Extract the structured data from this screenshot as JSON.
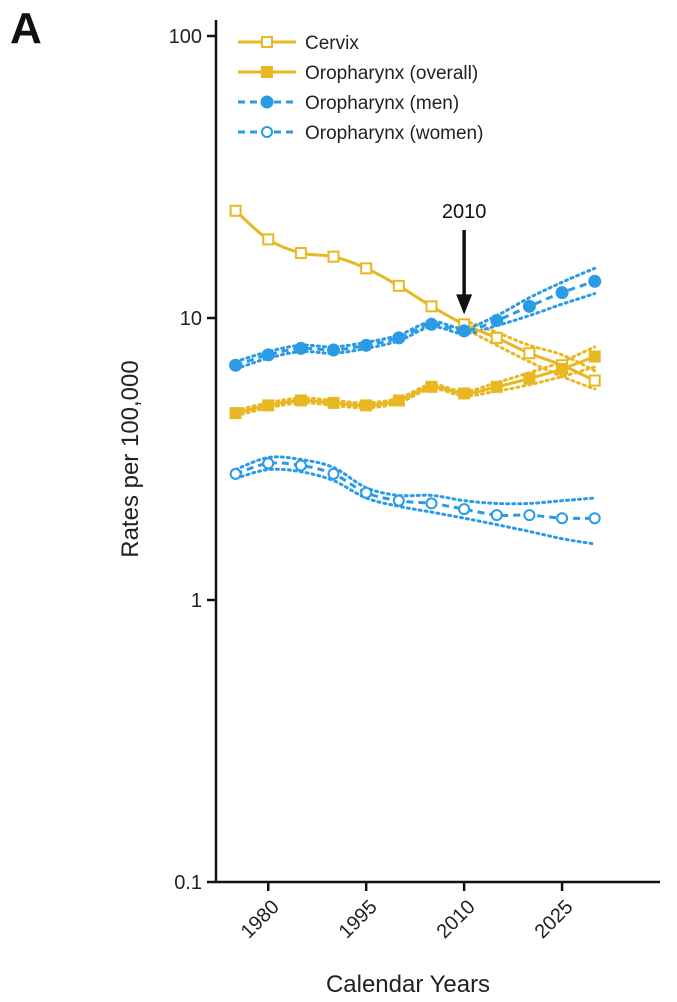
{
  "panel_label": "A",
  "colors": {
    "gold": "#e8b823",
    "blue": "#2b9be6",
    "axis": "#111111"
  },
  "chart_data": {
    "type": "line",
    "xlabel": "Calendar Years",
    "ylabel": "Rates per 100,000",
    "y_scale": "log",
    "ylim": [
      0.1,
      100
    ],
    "xlim": [
      1972,
      2040
    ],
    "y_ticks": [
      {
        "value": 0.1,
        "label": "0.1"
      },
      {
        "value": 1,
        "label": "1"
      },
      {
        "value": 10,
        "label": "10"
      },
      {
        "value": 100,
        "label": "100"
      }
    ],
    "x_ticks": [
      {
        "value": 1980,
        "label": "1980"
      },
      {
        "value": 1995,
        "label": "1995"
      },
      {
        "value": 2010,
        "label": "2010"
      },
      {
        "value": 2025,
        "label": "2025"
      }
    ],
    "legend_position": "top",
    "annotation": {
      "text": "2010",
      "x": 2010,
      "arrow_tip_y": 10.3
    },
    "series": [
      {
        "name": "Cervix",
        "color": "#e8b823",
        "line_style": "solid",
        "marker": "open-square",
        "x": [
          1975,
          1980,
          1985,
          1990,
          1995,
          2000,
          2005,
          2010,
          2015,
          2020,
          2025,
          2030
        ],
        "y": [
          24,
          19,
          17,
          16.5,
          15,
          13,
          11,
          9.5,
          8.5,
          7.5,
          6.8,
          6.0
        ],
        "ci_lower": [
          null,
          null,
          null,
          null,
          null,
          null,
          null,
          9.2,
          8.0,
          7.0,
          6.2,
          5.6
        ],
        "ci_upper": [
          null,
          null,
          null,
          null,
          null,
          null,
          null,
          9.8,
          8.9,
          8.0,
          7.4,
          6.5
        ]
      },
      {
        "name": "Oropharynx (overall)",
        "color": "#e8b823",
        "line_style": "solid",
        "marker": "filled-square",
        "x": [
          1975,
          1980,
          1985,
          1990,
          1995,
          2000,
          2005,
          2010,
          2015,
          2020,
          2025,
          2030
        ],
        "y": [
          4.6,
          4.9,
          5.1,
          5.0,
          4.9,
          5.1,
          5.7,
          5.4,
          5.7,
          6.1,
          6.6,
          7.3
        ],
        "ci_lower": [
          4.5,
          4.8,
          5.0,
          4.9,
          4.8,
          5.0,
          5.6,
          5.3,
          5.5,
          5.8,
          6.2,
          6.7
        ],
        "ci_upper": [
          4.7,
          5.0,
          5.2,
          5.1,
          5.0,
          5.2,
          5.8,
          5.5,
          5.9,
          6.4,
          7.0,
          7.9
        ]
      },
      {
        "name": "Oropharynx (men)",
        "color": "#2b9be6",
        "line_style": "dashed",
        "marker": "filled-circle",
        "x": [
          1975,
          1980,
          1985,
          1990,
          1995,
          2000,
          2005,
          2010,
          2015,
          2020,
          2025,
          2030
        ],
        "y": [
          6.8,
          7.4,
          7.8,
          7.7,
          8.0,
          8.5,
          9.5,
          9.0,
          9.8,
          11.0,
          12.3,
          13.5
        ],
        "ci_lower": [
          6.6,
          7.2,
          7.6,
          7.5,
          7.8,
          8.3,
          9.3,
          8.8,
          9.4,
          10.2,
          11.2,
          12.2
        ],
        "ci_upper": [
          7.0,
          7.6,
          8.0,
          7.9,
          8.2,
          8.7,
          9.7,
          9.2,
          10.2,
          11.8,
          13.4,
          15.0
        ]
      },
      {
        "name": "Oropharynx (women)",
        "color": "#2b9be6",
        "line_style": "dashed",
        "marker": "open-circle",
        "x": [
          1975,
          1980,
          1985,
          1990,
          1995,
          2000,
          2005,
          2010,
          2015,
          2020,
          2025,
          2030
        ],
        "y": [
          2.8,
          3.05,
          3.0,
          2.8,
          2.4,
          2.25,
          2.2,
          2.1,
          2.0,
          2.0,
          1.95,
          1.95
        ],
        "ci_lower": [
          2.7,
          2.9,
          2.85,
          2.65,
          2.3,
          2.15,
          2.05,
          1.95,
          1.85,
          1.75,
          1.65,
          1.58
        ],
        "ci_upper": [
          2.9,
          3.2,
          3.15,
          2.95,
          2.5,
          2.35,
          2.35,
          2.25,
          2.2,
          2.2,
          2.25,
          2.3
        ]
      }
    ]
  }
}
